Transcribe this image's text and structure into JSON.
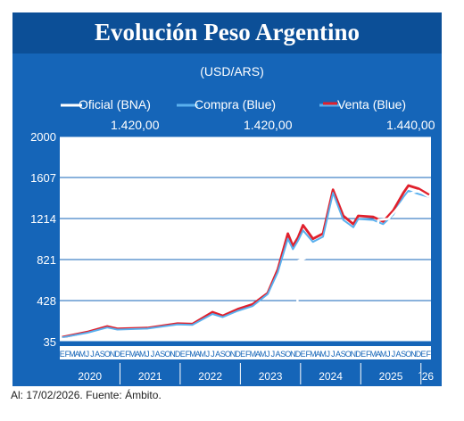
{
  "title": "Evolución Peso Argentino",
  "footer": "Al: 17/02/2026. Fuente: Ámbito.",
  "colors": {
    "background": "#1565b8",
    "title_bar": "#0c4f97",
    "oficial": "#ffffff",
    "compra": "#5ab0ee",
    "venta": "#e0202c"
  },
  "chart_data": {
    "type": "line",
    "subtitle": "(USD/ARS)",
    "ylim": [
      35,
      2000
    ],
    "yticks": [
      35,
      428,
      821,
      1214,
      1607,
      2000
    ],
    "grid": true,
    "legend_position": "top",
    "month_labels": "EFMAMJJASONDEFMAMJJASONDEFMAMJJASONDEFMAMJJASONDEFMAMJJASONDEFMAMJJASONDEF",
    "year_labels": [
      "2020",
      "2021",
      "2022",
      "2023",
      "2024",
      "2025",
      "´26"
    ],
    "series": [
      {
        "name": "Oficial (BNA)",
        "last_value": "1.420,00",
        "color": "#ffffff",
        "points": [
          [
            "2020-01",
            60
          ],
          [
            "2020-06",
            70
          ],
          [
            "2020-12",
            84
          ],
          [
            "2021-06",
            96
          ],
          [
            "2021-12",
            103
          ],
          [
            "2022-06",
            125
          ],
          [
            "2022-12",
            178
          ],
          [
            "2023-03",
            210
          ],
          [
            "2023-06",
            255
          ],
          [
            "2023-08-11",
            290
          ],
          [
            "2023-08-14",
            365
          ],
          [
            "2023-11",
            365
          ],
          [
            "2023-12-12",
            365
          ],
          [
            "2023-12-14",
            808
          ],
          [
            "2024-03",
            858
          ],
          [
            "2024-06",
            910
          ],
          [
            "2024-09",
            970
          ],
          [
            "2024-12",
            1030
          ],
          [
            "2025-03",
            1075
          ],
          [
            "2025-04-11",
            1085
          ],
          [
            "2025-04-15",
            1200
          ],
          [
            "2025-06",
            1210
          ],
          [
            "2025-08",
            1320
          ],
          [
            "2025-10",
            1450
          ],
          [
            "2025-12",
            1480
          ],
          [
            "2026-02-17",
            1420
          ]
        ]
      },
      {
        "name": "Compra (Blue)",
        "last_value": "1.420,00",
        "color": "#5ab0ee",
        "points": [
          [
            "2020-01",
            75
          ],
          [
            "2020-06",
            120
          ],
          [
            "2020-10",
            170
          ],
          [
            "2020-12",
            150
          ],
          [
            "2021-06",
            160
          ],
          [
            "2021-12",
            200
          ],
          [
            "2022-03",
            195
          ],
          [
            "2022-07",
            300
          ],
          [
            "2022-09",
            270
          ],
          [
            "2022-12",
            330
          ],
          [
            "2023-03",
            375
          ],
          [
            "2023-06",
            490
          ],
          [
            "2023-08",
            700
          ],
          [
            "2023-10",
            1020
          ],
          [
            "2023-11",
            920
          ],
          [
            "2023-12",
            1000
          ],
          [
            "2024-01",
            1100
          ],
          [
            "2024-03",
            990
          ],
          [
            "2024-05",
            1040
          ],
          [
            "2024-07",
            1460
          ],
          [
            "2024-09",
            1200
          ],
          [
            "2024-11",
            1130
          ],
          [
            "2024-12",
            1210
          ],
          [
            "2025-03",
            1200
          ],
          [
            "2025-05",
            1160
          ],
          [
            "2025-07",
            1250
          ],
          [
            "2025-09",
            1420
          ],
          [
            "2025-10",
            1480
          ],
          [
            "2025-12",
            1450
          ],
          [
            "2026-02-17",
            1420
          ]
        ]
      },
      {
        "name": "Venta (Blue)",
        "last_value": "1.440,00",
        "color": "#e0202c",
        "points": [
          [
            "2020-01",
            78
          ],
          [
            "2020-06",
            126
          ],
          [
            "2020-10",
            180
          ],
          [
            "2020-12",
            158
          ],
          [
            "2021-06",
            166
          ],
          [
            "2021-12",
            208
          ],
          [
            "2022-03",
            203
          ],
          [
            "2022-07",
            318
          ],
          [
            "2022-09",
            282
          ],
          [
            "2022-12",
            346
          ],
          [
            "2023-03",
            392
          ],
          [
            "2023-06",
            500
          ],
          [
            "2023-08",
            725
          ],
          [
            "2023-10",
            1070
          ],
          [
            "2023-11",
            950
          ],
          [
            "2023-12",
            1030
          ],
          [
            "2024-01",
            1150
          ],
          [
            "2024-03",
            1020
          ],
          [
            "2024-05",
            1070
          ],
          [
            "2024-07",
            1490
          ],
          [
            "2024-09",
            1240
          ],
          [
            "2024-11",
            1160
          ],
          [
            "2024-12",
            1240
          ],
          [
            "2025-03",
            1230
          ],
          [
            "2025-05",
            1185
          ],
          [
            "2025-07",
            1290
          ],
          [
            "2025-09",
            1460
          ],
          [
            "2025-10",
            1530
          ],
          [
            "2025-12",
            1500
          ],
          [
            "2026-02-17",
            1440
          ]
        ]
      }
    ]
  }
}
